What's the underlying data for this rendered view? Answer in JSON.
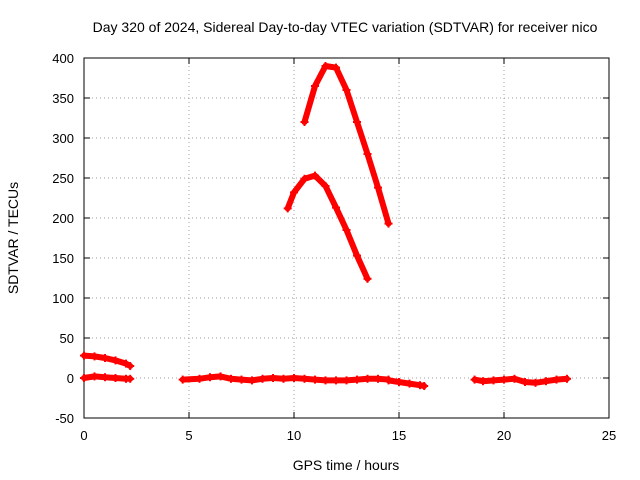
{
  "chart_data": {
    "type": "scatter",
    "title": "Day 320 of 2024, Sidereal Day-to-day VTEC variation (SDTVAR) for receiver nico",
    "xlabel": "GPS time / hours",
    "ylabel": "SDTVAR / TECUs",
    "xlim": [
      0,
      25
    ],
    "ylim": [
      -50,
      400
    ],
    "xticks": [
      0,
      5,
      10,
      15,
      20,
      25
    ],
    "yticks": [
      -50,
      0,
      50,
      100,
      150,
      200,
      250,
      300,
      350,
      400
    ],
    "xtick_labels": [
      "0",
      "5",
      "10",
      "15",
      "20",
      "25"
    ],
    "ytick_labels": [
      "-50",
      "0",
      "50",
      "100",
      "150",
      "200",
      "250",
      "300",
      "350",
      "400"
    ],
    "grid": true,
    "marker": "+",
    "color": "#ff0000",
    "series": [
      {
        "name": "arc-1",
        "x": [
          0.0,
          0.5,
          1.0,
          1.5,
          2.0,
          2.2
        ],
        "y": [
          28,
          27,
          25,
          22,
          18,
          15
        ]
      },
      {
        "name": "arc-2",
        "x": [
          0.0,
          0.5,
          1.0,
          1.5,
          2.0,
          2.2
        ],
        "y": [
          0,
          2,
          1,
          0,
          -1,
          -1
        ]
      },
      {
        "name": "arc-3",
        "x": [
          4.7,
          5.5,
          6.0,
          6.5,
          7.0,
          7.5,
          8.0,
          8.5,
          9.0,
          9.5,
          10.0,
          10.5,
          11.0,
          11.5,
          12.0,
          12.5,
          13.0,
          13.5,
          14.0,
          14.5
        ],
        "y": [
          -2,
          -1,
          1,
          2,
          -1,
          -2,
          -3,
          -1,
          0,
          -1,
          0,
          -1,
          -2,
          -3,
          -3,
          -3,
          -2,
          -1,
          -1,
          -2
        ]
      },
      {
        "name": "arc-4",
        "x": [
          14.5,
          15.0,
          15.5,
          16.0,
          16.2
        ],
        "y": [
          -3,
          -5,
          -7,
          -9,
          -10
        ]
      },
      {
        "name": "arc-5",
        "x": [
          9.7,
          10.0,
          10.5,
          11.0,
          11.5,
          12.0,
          12.5,
          13.0,
          13.5
        ],
        "y": [
          212,
          232,
          249,
          253,
          240,
          213,
          185,
          153,
          124
        ]
      },
      {
        "name": "arc-6",
        "x": [
          10.5,
          11.0,
          11.5,
          12.0,
          12.5,
          13.0,
          13.5,
          14.0,
          14.5
        ],
        "y": [
          320,
          365,
          390,
          388,
          360,
          320,
          280,
          238,
          193
        ]
      },
      {
        "name": "arc-7",
        "x": [
          18.6,
          19.0,
          19.5,
          20.0,
          20.5,
          21.0,
          21.5,
          22.0,
          22.5,
          23.0
        ],
        "y": [
          -2,
          -4,
          -3,
          -2,
          -1,
          -5,
          -6,
          -4,
          -2,
          -1
        ]
      }
    ]
  }
}
